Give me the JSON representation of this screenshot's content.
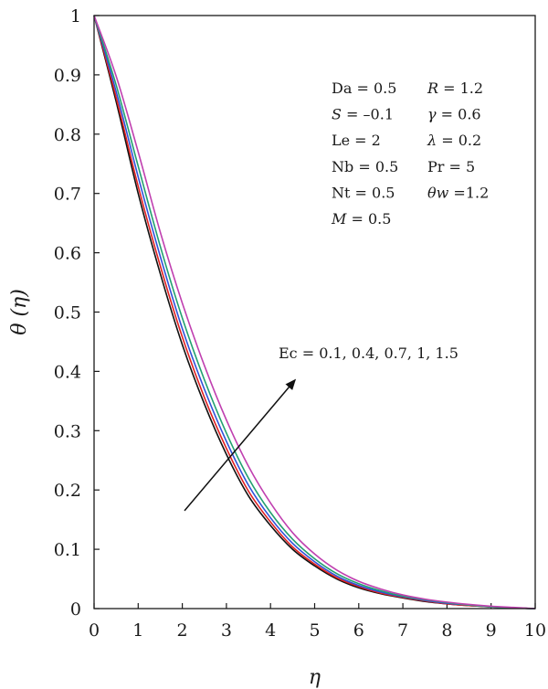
{
  "chart_data": {
    "type": "line",
    "xlabel": "η",
    "ylabel": "θ (η)",
    "xlim": [
      0,
      10
    ],
    "ylim": [
      0,
      1
    ],
    "xticks": [
      "0",
      "1",
      "2",
      "3",
      "4",
      "5",
      "6",
      "7",
      "8",
      "9",
      "10"
    ],
    "yticks": [
      "0",
      "0.1",
      "0.2",
      "0.3",
      "0.4",
      "0.5",
      "0.6",
      "0.7",
      "0.8",
      "0.9",
      "1"
    ],
    "grid": false,
    "x": [
      0,
      0.5,
      1,
      1.5,
      2,
      2.5,
      3,
      3.5,
      4,
      4.5,
      5,
      5.5,
      6,
      6.5,
      7,
      7.5,
      8,
      8.5,
      9,
      9.5,
      10
    ],
    "series": [
      {
        "color": "#111111",
        "values": [
          1.0,
          0.855,
          0.7,
          0.565,
          0.445,
          0.345,
          0.26,
          0.19,
          0.14,
          0.1,
          0.072,
          0.05,
          0.035,
          0.025,
          0.018,
          0.012,
          0.008,
          0.005,
          0.003,
          0.001,
          0.0
        ]
      },
      {
        "color": "#e02020",
        "values": [
          1.0,
          0.862,
          0.712,
          0.578,
          0.458,
          0.356,
          0.27,
          0.198,
          0.146,
          0.104,
          0.075,
          0.052,
          0.037,
          0.026,
          0.019,
          0.013,
          0.008,
          0.005,
          0.003,
          0.001,
          0.0
        ]
      },
      {
        "color": "#3050d8",
        "values": [
          1.0,
          0.872,
          0.728,
          0.594,
          0.472,
          0.37,
          0.282,
          0.208,
          0.153,
          0.11,
          0.079,
          0.055,
          0.039,
          0.028,
          0.02,
          0.014,
          0.009,
          0.006,
          0.003,
          0.001,
          0.0
        ]
      },
      {
        "color": "#22a070",
        "values": [
          1.0,
          0.883,
          0.746,
          0.611,
          0.49,
          0.386,
          0.296,
          0.22,
          0.162,
          0.117,
          0.084,
          0.059,
          0.042,
          0.03,
          0.021,
          0.015,
          0.01,
          0.006,
          0.003,
          0.001,
          0.0
        ]
      },
      {
        "color": "#c040b0",
        "values": [
          1.0,
          0.898,
          0.77,
          0.635,
          0.515,
          0.41,
          0.318,
          0.24,
          0.178,
          0.128,
          0.092,
          0.065,
          0.046,
          0.033,
          0.023,
          0.016,
          0.011,
          0.007,
          0.004,
          0.002,
          0.0
        ]
      }
    ],
    "annotation": "Ec = 0.1, 0.4, 0.7, 1, 1.5",
    "arrow": {
      "from": [
        2.05,
        0.165
      ],
      "to": [
        4.55,
        0.385
      ]
    },
    "params": [
      {
        "name": "Da",
        "italic": false,
        "value": " = 0.5"
      },
      {
        "name": "R",
        "italic": true,
        "value": " = 1.2"
      },
      {
        "name": "S",
        "italic": true,
        "value": " = –0.1"
      },
      {
        "name": "γ",
        "italic": true,
        "value": " = 0.6"
      },
      {
        "name": "Le",
        "italic": false,
        "value": " = 2"
      },
      {
        "name": "λ",
        "italic": true,
        "value": " = 0.2"
      },
      {
        "name": "Nb",
        "italic": false,
        "value": " = 0.5"
      },
      {
        "name": "Pr",
        "italic": false,
        "value": " = 5"
      },
      {
        "name": "Nt",
        "italic": false,
        "value": " = 0.5"
      },
      {
        "name": "θw",
        "italic": true,
        "value": " =1.2"
      },
      {
        "name": "M",
        "italic": true,
        "value": " = 0.5"
      }
    ]
  }
}
